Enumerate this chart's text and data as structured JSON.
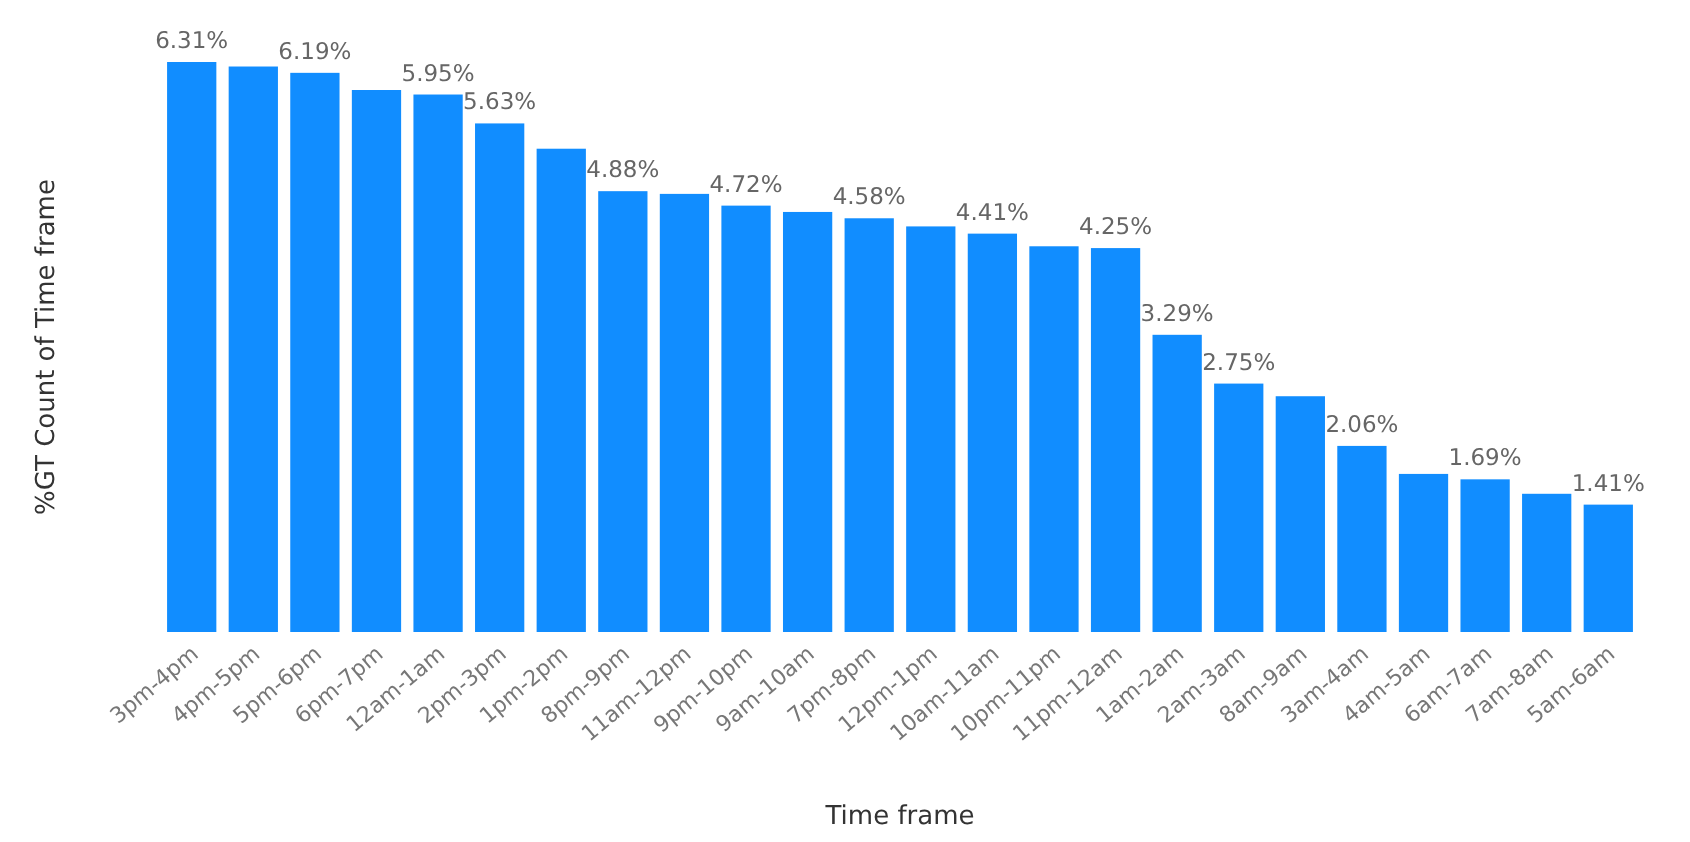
{
  "chart_data": {
    "type": "bar",
    "xlabel": "Time frame",
    "ylabel": "%GT Count of Time frame",
    "color": "#118dff",
    "categories": [
      "3pm-4pm",
      "4pm-5pm",
      "5pm-6pm",
      "6pm-7pm",
      "12am-1am",
      "2pm-3pm",
      "1pm-2pm",
      "8pm-9pm",
      "11am-12pm",
      "9pm-10pm",
      "9am-10am",
      "7pm-8pm",
      "12pm-1pm",
      "10am-11am",
      "10pm-11pm",
      "11pm-12am",
      "1am-2am",
      "2am-3am",
      "8am-9am",
      "3am-4am",
      "4am-5am",
      "6am-7am",
      "7am-8am",
      "5am-6am"
    ],
    "values": [
      6.31,
      6.26,
      6.19,
      6.0,
      5.95,
      5.63,
      5.35,
      4.88,
      4.85,
      4.72,
      4.65,
      4.58,
      4.49,
      4.41,
      4.27,
      4.25,
      3.29,
      2.75,
      2.61,
      2.06,
      1.75,
      1.69,
      1.53,
      1.41
    ],
    "value_labels": [
      "6.31%",
      null,
      "6.19%",
      null,
      "5.95%",
      "5.63%",
      null,
      "4.88%",
      null,
      "4.72%",
      null,
      "4.58%",
      null,
      "4.41%",
      null,
      "4.25%",
      "3.29%",
      "2.75%",
      null,
      "2.06%",
      null,
      "1.69%",
      null,
      "1.41%"
    ]
  }
}
